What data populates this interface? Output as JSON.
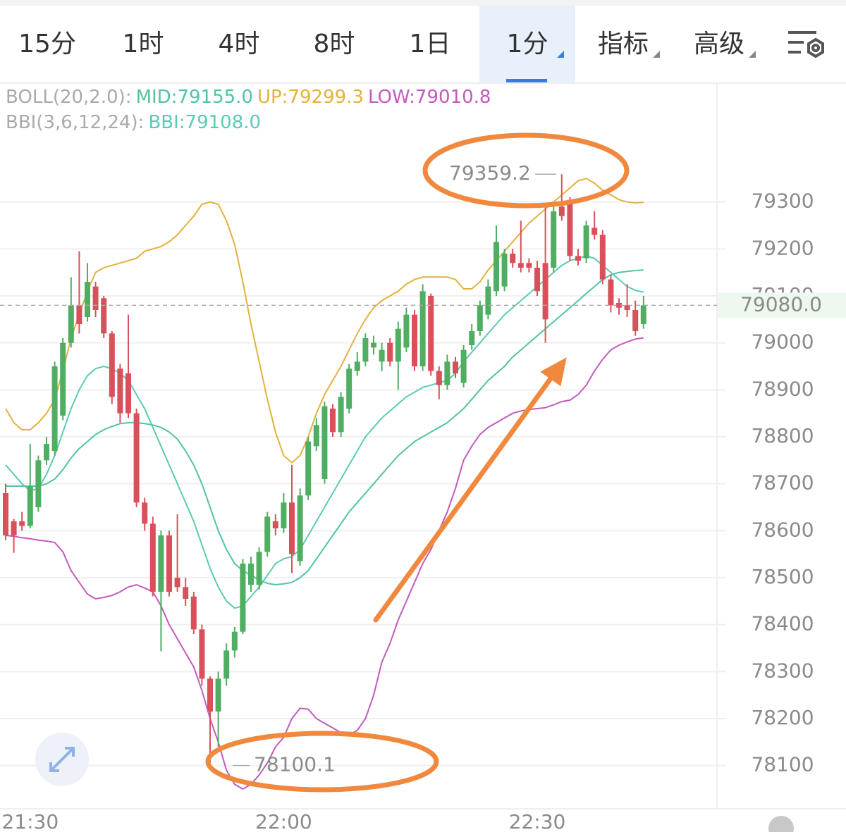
{
  "toolbar": {
    "tabs": [
      "15分",
      "1时",
      "4时",
      "8时",
      "1日",
      "1分",
      "指标",
      "高级"
    ],
    "selected": 5
  },
  "chart_data": {
    "type": "candlestick",
    "categories": [
      null,
      null,
      null,
      "21:30",
      null,
      null,
      null,
      null,
      null,
      null,
      null,
      null,
      null,
      null,
      null,
      null,
      null,
      null,
      null,
      null,
      null,
      null,
      null,
      null,
      null,
      null,
      null,
      null,
      null,
      null,
      null,
      null,
      null,
      null,
      "22:00",
      null,
      null,
      null,
      null,
      null,
      null,
      null,
      null,
      null,
      null,
      null,
      null,
      null,
      null,
      null,
      null,
      null,
      null,
      null,
      null,
      null,
      null,
      null,
      null,
      null,
      null,
      null,
      null,
      null,
      null,
      "22:30",
      null,
      null,
      null,
      null,
      null,
      null,
      null,
      null,
      null,
      null,
      null,
      null,
      null
    ],
    "open": [
      78680,
      78620,
      78620,
      78610,
      78650,
      78750,
      78770,
      78845,
      79000,
      79080,
      79055,
      79120,
      79095,
      79020,
      78945,
      78935,
      78850,
      78660,
      78615,
      78470,
      78590,
      78500,
      78480,
      78460,
      78390,
      78285,
      78215,
      78285,
      78345,
      78385,
      78485,
      78485,
      78555,
      78620,
      78605,
      78660,
      78535,
      78675,
      78780,
      78710,
      78860,
      78810,
      78860,
      78940,
      78960,
      78990,
      78960,
      79000,
      78960,
      78990,
      79060,
      78950,
      79100,
      78940,
      78910,
      78960,
      78915,
      78995,
      79025,
      79060,
      79110,
      79120,
      79190,
      79170,
      79170,
      79160,
      79170,
      79160,
      79290,
      79300,
      79185,
      79180,
      79245,
      79230,
      79135,
      79085,
      79080,
      79070,
      79040
    ],
    "high": [
      78700,
      78625,
      78640,
      78785,
      78760,
      78800,
      78960,
      79010,
      79140,
      79195,
      79170,
      79130,
      79100,
      79025,
      78955,
      79060,
      78860,
      78670,
      78630,
      78600,
      78600,
      78635,
      78500,
      78470,
      78400,
      78290,
      78300,
      78360,
      78395,
      78540,
      78545,
      78565,
      78640,
      78635,
      78680,
      78740,
      78690,
      78800,
      78840,
      78875,
      78870,
      78895,
      78955,
      78980,
      79020,
      79015,
      79000,
      79010,
      79045,
      79075,
      79070,
      79125,
      79105,
      78950,
      78975,
      78970,
      78995,
      79040,
      79090,
      79135,
      79250,
      79200,
      79200,
      79260,
      79180,
      79175,
      79295,
      79290,
      79359.2,
      79310,
      79200,
      79260,
      79280,
      79240,
      79145,
      79095,
      79125,
      79090,
      79100
    ],
    "low": [
      78580,
      78553,
      78600,
      78605,
      78640,
      78740,
      78760,
      78835,
      78990,
      79020,
      79045,
      79055,
      79010,
      78870,
      78830,
      78840,
      78650,
      78600,
      78460,
      78343,
      78460,
      78470,
      78440,
      78380,
      78270,
      78100.1,
      78140,
      78270,
      78330,
      78380,
      78470,
      78475,
      78545,
      78590,
      78595,
      78510,
      78525,
      78665,
      78770,
      78700,
      78800,
      78800,
      78850,
      78930,
      78950,
      78975,
      78940,
      78950,
      78900,
      78980,
      78940,
      78940,
      78930,
      78880,
      78900,
      78925,
      78905,
      78985,
      79015,
      79050,
      79100,
      79110,
      79160,
      79150,
      79150,
      79100,
      79000,
      79150,
      79260,
      79175,
      79165,
      79170,
      79220,
      79125,
      79065,
      79060,
      79055,
      79015,
      79030
    ],
    "close": [
      78590,
      78590,
      78610,
      78695,
      78750,
      78785,
      78950,
      79000,
      79080,
      79040,
      79130,
      79070,
      79020,
      78885,
      78850,
      78850,
      78660,
      78615,
      78470,
      78590,
      78470,
      78480,
      78455,
      78390,
      78285,
      78215,
      78285,
      78345,
      78385,
      78530,
      78530,
      78555,
      78630,
      78605,
      78660,
      78550,
      78675,
      78790,
      78825,
      78865,
      78810,
      78885,
      78945,
      78960,
      79010,
      79000,
      78985,
      78960,
      79030,
      79060,
      78950,
      79110,
      78940,
      78910,
      78960,
      78935,
      78985,
      79025,
      79080,
      79120,
      79215,
      79190,
      79170,
      79160,
      79160,
      79110,
      79050,
      79280,
      79270,
      79185,
      79175,
      79250,
      79230,
      79135,
      79080,
      79075,
      79070,
      79025,
      79080
    ],
    "up_color": "#4fae62",
    "down_color": "#d9505a",
    "ylim": [
      78008,
      79550
    ],
    "yticks": [
      78100,
      78200,
      78300,
      78400,
      78500,
      78600,
      78700,
      78800,
      78900,
      79000,
      79100,
      79200,
      79300
    ],
    "grid": true,
    "current_price": {
      "value": 79080,
      "label": "79080.0"
    },
    "extreme_labels": {
      "high": "79359.2",
      "low": "78100.1"
    },
    "indicators": [
      {
        "label": "BOLL(20,2.0):",
        "series": [
          {
            "name": "MID:79155.0",
            "color": "#52c2a6",
            "values": [
              78695,
              78695,
              78695,
              78695,
              78695,
              78700,
              78710,
              78730,
              78755,
              78775,
              78790,
              78805,
              78815,
              78822,
              78828,
              78830,
              78830,
              78828,
              78825,
              78820,
              78810,
              78795,
              78770,
              78740,
              78700,
              78650,
              78600,
              78560,
              78530,
              78515,
              78505,
              78495,
              78488,
              78485,
              78487,
              78490,
              78500,
              78515,
              78540,
              78565,
              78590,
              78615,
              78640,
              78660,
              78680,
              78700,
              78720,
              78740,
              78760,
              78775,
              78790,
              78800,
              78810,
              78820,
              78830,
              78845,
              78860,
              78880,
              78900,
              78920,
              78935,
              78950,
              78970,
              78985,
              79000,
              79015,
              79030,
              79045,
              79060,
              79075,
              79090,
              79105,
              79120,
              79135,
              79145,
              79150,
              79152,
              79154,
              79155
            ]
          },
          {
            "name": "UP:79299.3",
            "color": "#e2b23c",
            "values": [
              78860,
              78830,
              78815,
              78815,
              78830,
              78850,
              78880,
              78940,
              79010,
              79060,
              79110,
              79150,
              79160,
              79165,
              79170,
              79175,
              79180,
              79195,
              79200,
              79205,
              79215,
              79230,
              79250,
              79270,
              79295,
              79300,
              79295,
              79260,
              79210,
              79130,
              79040,
              78960,
              78880,
              78810,
              78760,
              78745,
              78760,
              78800,
              78850,
              78890,
              78920,
              78950,
              78985,
              79020,
              79050,
              79075,
              79090,
              79100,
              79110,
              79125,
              79135,
              79140,
              79140,
              79140,
              79140,
              79135,
              79115,
              79115,
              79130,
              79155,
              79175,
              79195,
              79215,
              79235,
              79255,
              79270,
              79285,
              79300,
              79315,
              79330,
              79345,
              79350,
              79340,
              79325,
              79315,
              79305,
              79300,
              79298,
              79299.3
            ]
          },
          {
            "name": "LOW:79010.8",
            "color": "#c25bbd",
            "values": [
              78590,
              78588,
              78585,
              78583,
              78580,
              78578,
              78575,
              78555,
              78515,
              78490,
              78465,
              78455,
              78458,
              78462,
              78470,
              78480,
              78485,
              78478,
              78470,
              78440,
              78400,
              78370,
              78340,
              78310,
              78260,
              78200,
              78150,
              78090,
              78060,
              78050,
              78060,
              78080,
              78105,
              78140,
              78160,
              78200,
              78222,
              78220,
              78200,
              78190,
              78180,
              78170,
              78165,
              78175,
              78200,
              78250,
              78320,
              78360,
              78410,
              78450,
              78490,
              78530,
              78560,
              78600,
              78640,
              78690,
              78750,
              78780,
              78805,
              78820,
              78830,
              78840,
              78850,
              78855,
              78858,
              78860,
              78862,
              78868,
              78875,
              78878,
              78890,
              78910,
              78940,
              78965,
              78985,
              78995,
              79002,
              79008,
              79010.8
            ]
          }
        ]
      },
      {
        "label": "BBI(3,6,12,24):",
        "series": [
          {
            "name": "BBI:79108.0",
            "color": "#5ccab4",
            "values": [
              78740,
              78720,
              78700,
              78685,
              78690,
              78720,
              78760,
              78810,
              78860,
              78900,
              78930,
              78945,
              78950,
              78945,
              78935,
              78920,
              78890,
              78860,
              78820,
              78780,
              78740,
              78700,
              78660,
              78620,
              78570,
              78520,
              78480,
              78450,
              78435,
              78440,
              78460,
              78480,
              78505,
              78530,
              78540,
              78545,
              78560,
              78590,
              78620,
              78650,
              78680,
              78710,
              78740,
              78770,
              78800,
              78820,
              78840,
              78855,
              78870,
              78885,
              78895,
              78905,
              78910,
              78915,
              78920,
              78935,
              78960,
              78980,
              79000,
              79020,
              79040,
              79060,
              79075,
              79090,
              79105,
              79120,
              79135,
              79150,
              79165,
              79175,
              79180,
              79185,
              79180,
              79165,
              79150,
              79135,
              79120,
              79112,
              79108
            ]
          }
        ]
      }
    ]
  }
}
